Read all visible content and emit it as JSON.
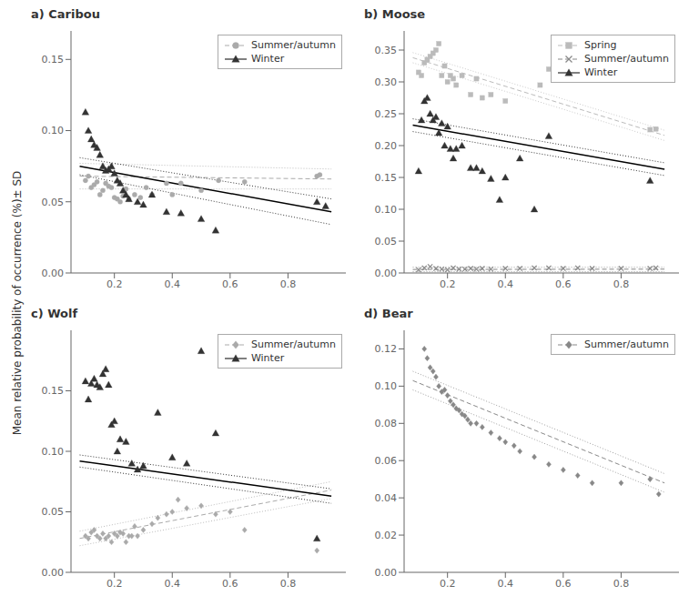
{
  "ylabel": "Mean relative probability of occurrence (%)± SD",
  "chart_data": [
    {
      "type": "scatter",
      "title": "a) Caribou",
      "xlim": [
        0.05,
        1.0
      ],
      "xticks": [
        0.2,
        0.4,
        0.6,
        0.8
      ],
      "ylim": [
        0.0,
        0.17
      ],
      "yticks": [
        {
          "value": 0,
          "label": "0.00"
        },
        0.05,
        {
          "value": 0.1,
          "label": "0.10"
        },
        0.15
      ],
      "grid": false,
      "legend": "upper right",
      "series": [
        {
          "name": "Summer/autumn",
          "marker": "o",
          "color": "#aaaaaa",
          "line_style": "--",
          "line_color": "#aaaaaa",
          "x": [
            0.1,
            0.11,
            0.12,
            0.13,
            0.14,
            0.15,
            0.16,
            0.17,
            0.18,
            0.19,
            0.2,
            0.21,
            0.22,
            0.23,
            0.24,
            0.25,
            0.27,
            0.29,
            0.31,
            0.33,
            0.38,
            0.4,
            0.43,
            0.5,
            0.56,
            0.65,
            0.9,
            0.91
          ],
          "values": [
            0.065,
            0.068,
            0.06,
            0.062,
            0.064,
            0.055,
            0.058,
            0.063,
            0.061,
            0.06,
            0.053,
            0.052,
            0.05,
            0.054,
            0.059,
            0.052,
            0.055,
            0.053,
            0.06,
            0.055,
            0.063,
            0.055,
            0.063,
            0.058,
            0.065,
            0.064,
            0.068,
            0.069
          ],
          "fit_x": [
            0.08,
            0.95
          ],
          "fit_values": [
            0.068,
            0.066
          ],
          "ci_upper": [
            0.077,
            0.073
          ],
          "ci_lower": [
            0.059,
            0.059
          ]
        },
        {
          "name": "Winter",
          "marker": "^",
          "color": "#333333",
          "line_style": "-",
          "line_color": "#000000",
          "x": [
            0.1,
            0.11,
            0.12,
            0.13,
            0.14,
            0.15,
            0.16,
            0.17,
            0.18,
            0.19,
            0.2,
            0.21,
            0.22,
            0.23,
            0.24,
            0.25,
            0.28,
            0.3,
            0.33,
            0.38,
            0.43,
            0.5,
            0.55,
            0.9,
            0.93
          ],
          "values": [
            0.113,
            0.1,
            0.094,
            0.09,
            0.088,
            0.083,
            0.075,
            0.072,
            0.073,
            0.075,
            0.07,
            0.065,
            0.063,
            0.058,
            0.055,
            0.052,
            0.05,
            0.048,
            0.055,
            0.043,
            0.042,
            0.038,
            0.03,
            0.05,
            0.047
          ],
          "fit_x": [
            0.08,
            0.95
          ],
          "fit_values": [
            0.075,
            0.043
          ],
          "ci_upper": [
            0.081,
            0.052
          ],
          "ci_lower": [
            0.069,
            0.034
          ]
        }
      ]
    },
    {
      "type": "scatter",
      "title": "b) Moose",
      "xlim": [
        0.05,
        1.0
      ],
      "xticks": [
        0.2,
        0.4,
        0.6,
        0.8
      ],
      "ylim": [
        0.0,
        0.38
      ],
      "yticks": [
        {
          "value": 0,
          "label": "0.00"
        },
        0.05,
        {
          "value": 0.1,
          "label": "0.10"
        },
        0.15,
        {
          "value": 0.2,
          "label": "0.20"
        },
        0.25,
        {
          "value": 0.3,
          "label": "0.30"
        },
        0.35
      ],
      "grid": false,
      "legend": "upper right",
      "series": [
        {
          "name": "Spring",
          "marker": "s",
          "color": "#bbbbbb",
          "line_style": "--",
          "line_color": "#bbbbbb",
          "x": [
            0.1,
            0.11,
            0.12,
            0.13,
            0.14,
            0.15,
            0.16,
            0.17,
            0.18,
            0.19,
            0.2,
            0.21,
            0.22,
            0.23,
            0.25,
            0.28,
            0.3,
            0.32,
            0.35,
            0.4,
            0.52,
            0.55,
            0.9,
            0.92
          ],
          "values": [
            0.315,
            0.31,
            0.33,
            0.335,
            0.34,
            0.345,
            0.35,
            0.36,
            0.31,
            0.325,
            0.3,
            0.31,
            0.305,
            0.295,
            0.31,
            0.28,
            0.305,
            0.275,
            0.28,
            0.27,
            0.295,
            0.32,
            0.225,
            0.226
          ],
          "fit_x": [
            0.08,
            0.95
          ],
          "fit_values": [
            0.338,
            0.216
          ],
          "ci_upper": [
            0.346,
            0.224
          ],
          "ci_lower": [
            0.33,
            0.208
          ]
        },
        {
          "name": "Summer/autumn",
          "marker": "x",
          "color": "#888888",
          "line_style": "--",
          "line_color": "#888888",
          "x": [
            0.1,
            0.12,
            0.14,
            0.16,
            0.18,
            0.2,
            0.22,
            0.24,
            0.26,
            0.28,
            0.3,
            0.32,
            0.35,
            0.4,
            0.45,
            0.5,
            0.55,
            0.6,
            0.65,
            0.7,
            0.8,
            0.9,
            0.92
          ],
          "values": [
            0.005,
            0.008,
            0.01,
            0.007,
            0.006,
            0.005,
            0.008,
            0.006,
            0.006,
            0.007,
            0.006,
            0.007,
            0.006,
            0.007,
            0.007,
            0.008,
            0.008,
            0.007,
            0.008,
            0.007,
            0.007,
            0.007,
            0.008
          ],
          "fit_x": [
            0.08,
            0.95
          ],
          "fit_values": [
            0.0055,
            0.006
          ],
          "ci_upper": [
            0.009,
            0.009
          ],
          "ci_lower": [
            0.002,
            0.002
          ]
        },
        {
          "name": "Winter",
          "marker": "^",
          "color": "#333333",
          "line_style": "-",
          "line_color": "#000000",
          "x": [
            0.1,
            0.11,
            0.12,
            0.13,
            0.14,
            0.15,
            0.16,
            0.17,
            0.18,
            0.19,
            0.2,
            0.21,
            0.22,
            0.23,
            0.25,
            0.28,
            0.3,
            0.32,
            0.35,
            0.38,
            0.4,
            0.45,
            0.5,
            0.55,
            0.9
          ],
          "values": [
            0.16,
            0.24,
            0.27,
            0.275,
            0.25,
            0.24,
            0.245,
            0.22,
            0.235,
            0.2,
            0.23,
            0.195,
            0.18,
            0.195,
            0.2,
            0.165,
            0.165,
            0.16,
            0.148,
            0.115,
            0.15,
            0.18,
            0.1,
            0.215,
            0.145
          ],
          "fit_x": [
            0.08,
            0.95
          ],
          "fit_values": [
            0.232,
            0.163
          ],
          "ci_upper": [
            0.242,
            0.173
          ],
          "ci_lower": [
            0.222,
            0.153
          ]
        }
      ]
    },
    {
      "type": "scatter",
      "title": "c) Wolf",
      "xlim": [
        0.05,
        1.0
      ],
      "xticks": [
        0.2,
        0.4,
        0.6,
        0.8
      ],
      "ylim": [
        0.0,
        0.2
      ],
      "yticks": [
        {
          "value": 0,
          "label": "0.00"
        },
        0.05,
        {
          "value": 0.1,
          "label": "0.10"
        },
        0.15
      ],
      "grid": false,
      "legend": "upper right",
      "series": [
        {
          "name": "Summer/autumn",
          "marker": "D",
          "color": "#aaaaaa",
          "line_style": "--",
          "line_color": "#aaaaaa",
          "x": [
            0.1,
            0.11,
            0.12,
            0.13,
            0.14,
            0.15,
            0.16,
            0.17,
            0.18,
            0.19,
            0.2,
            0.21,
            0.22,
            0.23,
            0.24,
            0.25,
            0.26,
            0.27,
            0.28,
            0.3,
            0.33,
            0.35,
            0.38,
            0.4,
            0.42,
            0.45,
            0.5,
            0.55,
            0.6,
            0.65,
            0.9
          ],
          "values": [
            0.03,
            0.028,
            0.033,
            0.035,
            0.03,
            0.028,
            0.032,
            0.028,
            0.03,
            0.025,
            0.032,
            0.03,
            0.033,
            0.032,
            0.025,
            0.03,
            0.03,
            0.038,
            0.03,
            0.035,
            0.04,
            0.045,
            0.048,
            0.05,
            0.06,
            0.053,
            0.055,
            0.048,
            0.05,
            0.035,
            0.018
          ],
          "fit_x": [
            0.08,
            0.95
          ],
          "fit_values": [
            0.028,
            0.068
          ],
          "ci_upper": [
            0.034,
            0.075
          ],
          "ci_lower": [
            0.022,
            0.061
          ]
        },
        {
          "name": "Winter",
          "marker": "^",
          "color": "#333333",
          "line_style": "-",
          "line_color": "#000000",
          "x": [
            0.1,
            0.11,
            0.12,
            0.13,
            0.14,
            0.15,
            0.16,
            0.17,
            0.18,
            0.19,
            0.2,
            0.21,
            0.22,
            0.24,
            0.26,
            0.28,
            0.3,
            0.35,
            0.4,
            0.45,
            0.5,
            0.55,
            0.9
          ],
          "values": [
            0.158,
            0.143,
            0.156,
            0.16,
            0.155,
            0.153,
            0.164,
            0.168,
            0.155,
            0.122,
            0.125,
            0.1,
            0.11,
            0.108,
            0.09,
            0.085,
            0.088,
            0.132,
            0.095,
            0.09,
            0.183,
            0.115,
            0.028
          ],
          "fit_x": [
            0.08,
            0.95
          ],
          "fit_values": [
            0.092,
            0.063
          ],
          "ci_upper": [
            0.097,
            0.069
          ],
          "ci_lower": [
            0.087,
            0.057
          ]
        }
      ]
    },
    {
      "type": "scatter",
      "title": "d) Bear",
      "xlim": [
        0.05,
        1.0
      ],
      "xticks": [
        0.2,
        0.4,
        0.6,
        0.8
      ],
      "ylim": [
        0.0,
        0.13
      ],
      "yticks": [
        {
          "value": 0,
          "label": "0.00"
        },
        0.02,
        0.04,
        0.06,
        0.08,
        {
          "value": 0.1,
          "label": "0.10"
        },
        0.12
      ],
      "grid": false,
      "legend": "upper right",
      "series": [
        {
          "name": "Summer/autumn",
          "marker": "D",
          "color": "#888888",
          "line_style": "--",
          "line_color": "#888888",
          "x": [
            0.12,
            0.13,
            0.14,
            0.15,
            0.16,
            0.17,
            0.18,
            0.19,
            0.2,
            0.21,
            0.22,
            0.23,
            0.24,
            0.25,
            0.26,
            0.27,
            0.28,
            0.3,
            0.32,
            0.35,
            0.38,
            0.4,
            0.43,
            0.45,
            0.5,
            0.55,
            0.6,
            0.65,
            0.7,
            0.8,
            0.9,
            0.93
          ],
          "values": [
            0.12,
            0.115,
            0.11,
            0.108,
            0.105,
            0.1,
            0.097,
            0.098,
            0.095,
            0.092,
            0.09,
            0.088,
            0.087,
            0.085,
            0.084,
            0.082,
            0.08,
            0.08,
            0.078,
            0.075,
            0.072,
            0.07,
            0.068,
            0.065,
            0.062,
            0.058,
            0.055,
            0.052,
            0.048,
            0.048,
            0.05,
            0.042
          ],
          "fit_x": [
            0.08,
            0.95
          ],
          "fit_values": [
            0.103,
            0.048
          ],
          "ci_upper": [
            0.108,
            0.053
          ],
          "ci_lower": [
            0.098,
            0.043
          ]
        }
      ]
    }
  ]
}
